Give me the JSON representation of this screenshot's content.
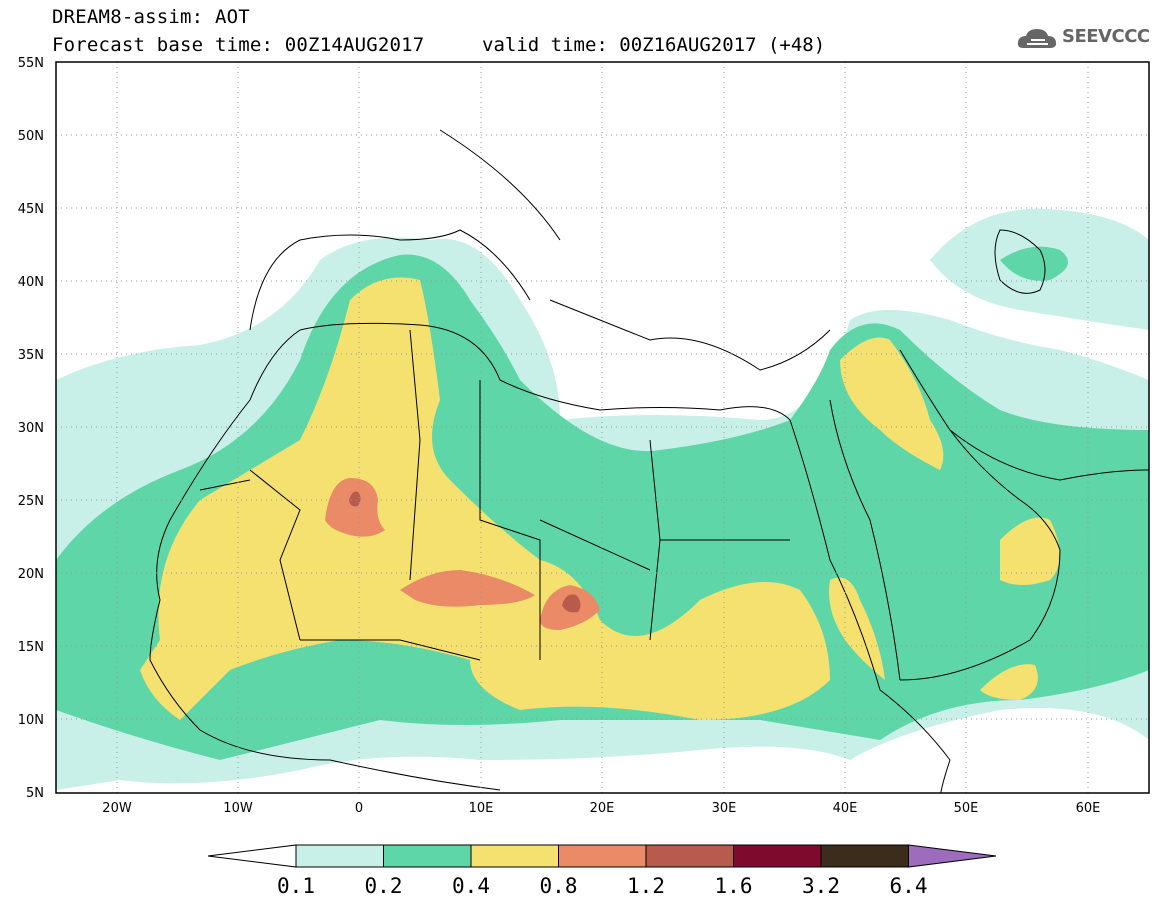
{
  "header": {
    "line1": "DREAM8-assim: AOT",
    "line2": "Forecast base time: 00Z14AUG2017",
    "valid": "valid time: 00Z16AUG2017 (+48)",
    "logo_text": "SEEVCCC"
  },
  "map": {
    "lon_range": [
      -25,
      65
    ],
    "lat_range": [
      5,
      55
    ],
    "lat_ticks": [
      "55N",
      "50N",
      "45N",
      "40N",
      "35N",
      "30N",
      "25N",
      "20N",
      "15N",
      "10N",
      "5N"
    ],
    "lon_ticks": [
      "20W",
      "10W",
      "0",
      "10E",
      "20E",
      "30E",
      "40E",
      "50E",
      "60E"
    ]
  },
  "colorbar": {
    "labels": [
      "0.1",
      "0.2",
      "0.4",
      "0.8",
      "1.2",
      "1.6",
      "3.2",
      "6.4"
    ],
    "colors": [
      "#c8f0e8",
      "#5fd6a8",
      "#f5e170",
      "#ea8a66",
      "#b85a4c",
      "#7e0a2e",
      "#3c2c1c",
      "#9e6cbc"
    ],
    "below_color": "#ffffff"
  },
  "colors": {
    "level1": "#c8f0e8",
    "level2": "#5fd6a8",
    "level3": "#f5e170",
    "level4": "#ea8a66",
    "level5": "#b85a4c",
    "border": "#000000"
  }
}
